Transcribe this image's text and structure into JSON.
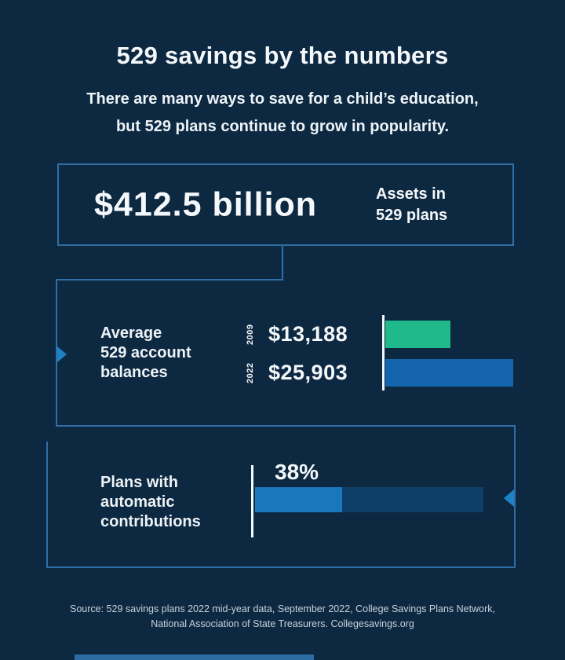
{
  "colors": {
    "background": "#0d2942",
    "outline_blue": "#2f6fa6",
    "text_white": "#f5f8fa",
    "muted_text": "#c7d1da",
    "green_bar": "#20b98b",
    "blue_bar": "#1465ad",
    "fill_light_blue": "#1b77bd",
    "track_dark_blue": "#0e3f6b",
    "arrow_blue": "#1e82c6"
  },
  "header": {
    "title": "529 savings by the numbers",
    "subtitle_line1": "There are many ways to save for a child’s education,",
    "subtitle_line2": "but 529 plans continue to grow in popularity."
  },
  "stat_box": {
    "value": "$412.5 billion",
    "label_line1": "Assets in",
    "label_line2": "529 plans"
  },
  "balances": {
    "label_line1": "Average",
    "label_line2": "529 account",
    "label_line3": "balances"
  },
  "automatic": {
    "label_line1": "Plans with",
    "label_line2": "automatic",
    "label_line3": "contributions"
  },
  "footer": {
    "source_line1": "Source: 529 savings plans 2022 mid-year data, September 2022, College Savings Plans Network,",
    "source_line2": "National Association of State Treasurers. Collegesavings.org"
  },
  "chart_data": [
    {
      "type": "bar",
      "title": "Average 529 account balances",
      "orientation": "horizontal",
      "categories": [
        "2009",
        "2022"
      ],
      "values": [
        13188,
        25903
      ],
      "value_labels": [
        "$13,188",
        "$25,903"
      ],
      "colors": [
        "#20b98b",
        "#1465ad"
      ],
      "xlim": [
        0,
        26500
      ],
      "unit": "USD",
      "grid": false,
      "legend": "none"
    },
    {
      "type": "bar",
      "title": "Plans with automatic contributions",
      "orientation": "horizontal",
      "categories": [
        "Plans with automatic contributions"
      ],
      "values": [
        38
      ],
      "value_labels": [
        "38%"
      ],
      "fill_color": "#1b77bd",
      "track_color": "#0e3f6b",
      "xlim": [
        0,
        100
      ],
      "unit": "percent",
      "grid": false,
      "legend": "none"
    }
  ]
}
